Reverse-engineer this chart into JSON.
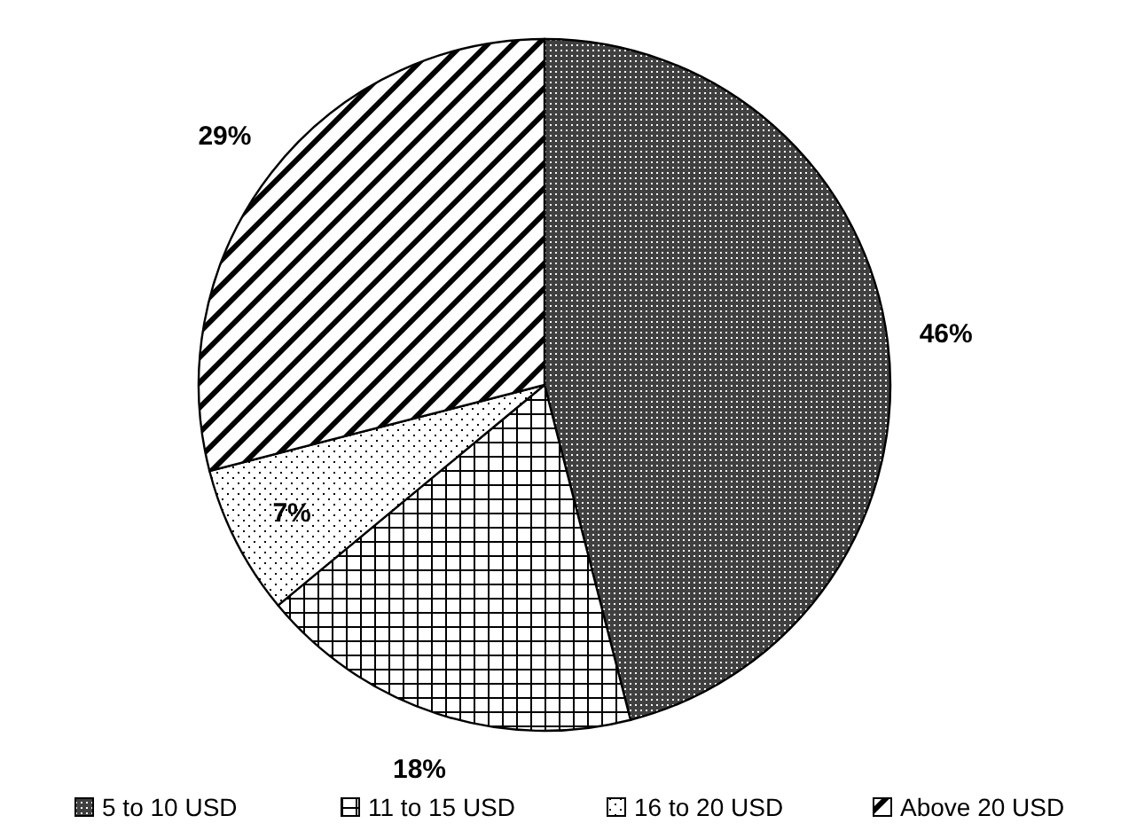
{
  "chart_data": {
    "type": "pie",
    "categories": [
      "5 to 10 USD",
      "11 to 15 USD",
      "16 to 20 USD",
      "Above 20 USD"
    ],
    "values": [
      46,
      18,
      7,
      29
    ],
    "colors": [
      "#000000",
      "#000000",
      "#000000",
      "#000000"
    ],
    "value_labels": [
      "46%",
      "18%",
      "7%",
      "29%"
    ],
    "legend": "bottom"
  }
}
